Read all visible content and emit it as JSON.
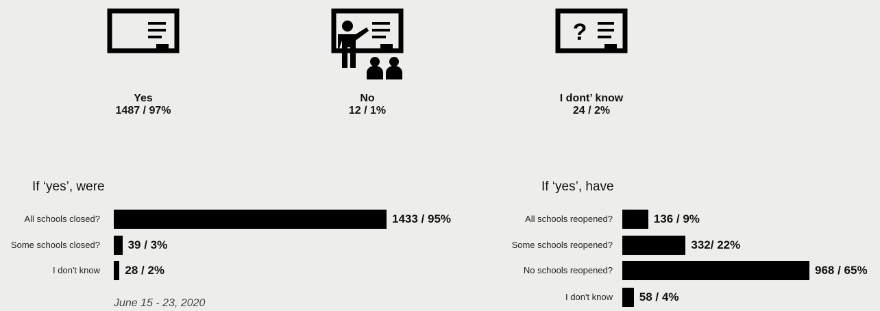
{
  "icons": [
    {
      "icon": "board-icon",
      "label": "Yes",
      "value": "1487 / 97%"
    },
    {
      "icon": "teacher-classroom-icon",
      "label": "No",
      "value": "12 / 1%"
    },
    {
      "icon": "board-question-icon",
      "label": "I dont’ know",
      "value": "24 / 2%"
    }
  ],
  "date_note": "June 15 - 23, 2020",
  "colors": {
    "bar": "#000000",
    "background": "#ededeb"
  },
  "chart_data": [
    {
      "type": "bar",
      "orientation": "horizontal",
      "title": "If  ‘yes’, were",
      "categories": [
        "All schools closed?",
        "Some schools closed?",
        "I don't know"
      ],
      "values": [
        1433,
        39,
        28
      ],
      "percents": [
        95,
        3,
        2
      ],
      "value_labels": [
        "1433 / 95%",
        "39 / 3%",
        "28 / 2%"
      ]
    },
    {
      "type": "bar",
      "orientation": "horizontal",
      "title": "If  ‘yes’, have",
      "categories": [
        "All schools reopened?",
        "Some schools reopened?",
        "No schools reopened?",
        "I don't know"
      ],
      "values": [
        136,
        332,
        968,
        58
      ],
      "percents": [
        9,
        22,
        65,
        4
      ],
      "value_labels": [
        "136 / 9%",
        "332/ 22%",
        "968 / 65%",
        "58 / 4%"
      ]
    }
  ]
}
